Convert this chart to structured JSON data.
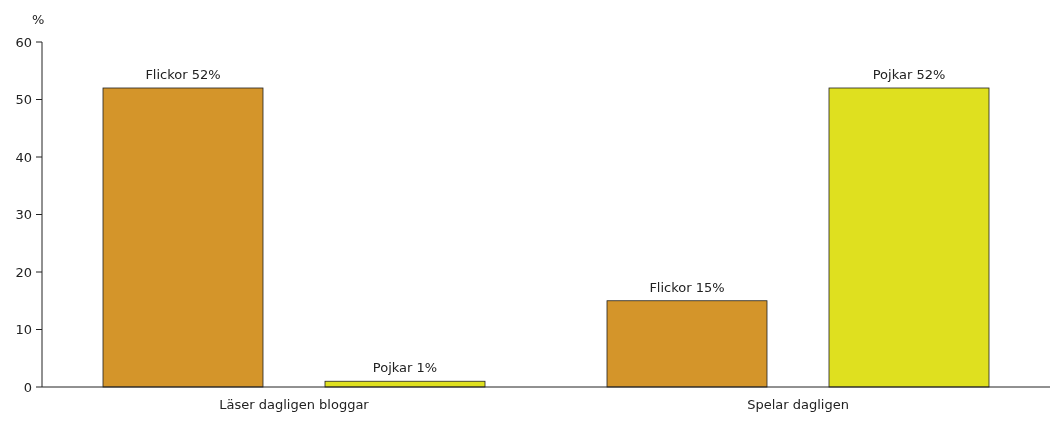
{
  "chart_data": {
    "type": "bar",
    "ylabel": "%",
    "categories": [
      "Läser dagligen bloggar",
      "Spelar dagligen"
    ],
    "series": [
      {
        "color": "#d4952a",
        "values": [
          52,
          15
        ],
        "value_labels": [
          "Flickor 52%",
          "Flickor 15%"
        ]
      },
      {
        "color": "#dfe01f",
        "values": [
          1,
          52
        ],
        "value_labels": [
          "Pojkar 1%",
          "Pojkar 52%"
        ]
      }
    ],
    "ylim": [
      0,
      60
    ],
    "yticks": [
      0,
      10,
      20,
      30,
      40,
      50,
      60
    ],
    "grid": false
  }
}
